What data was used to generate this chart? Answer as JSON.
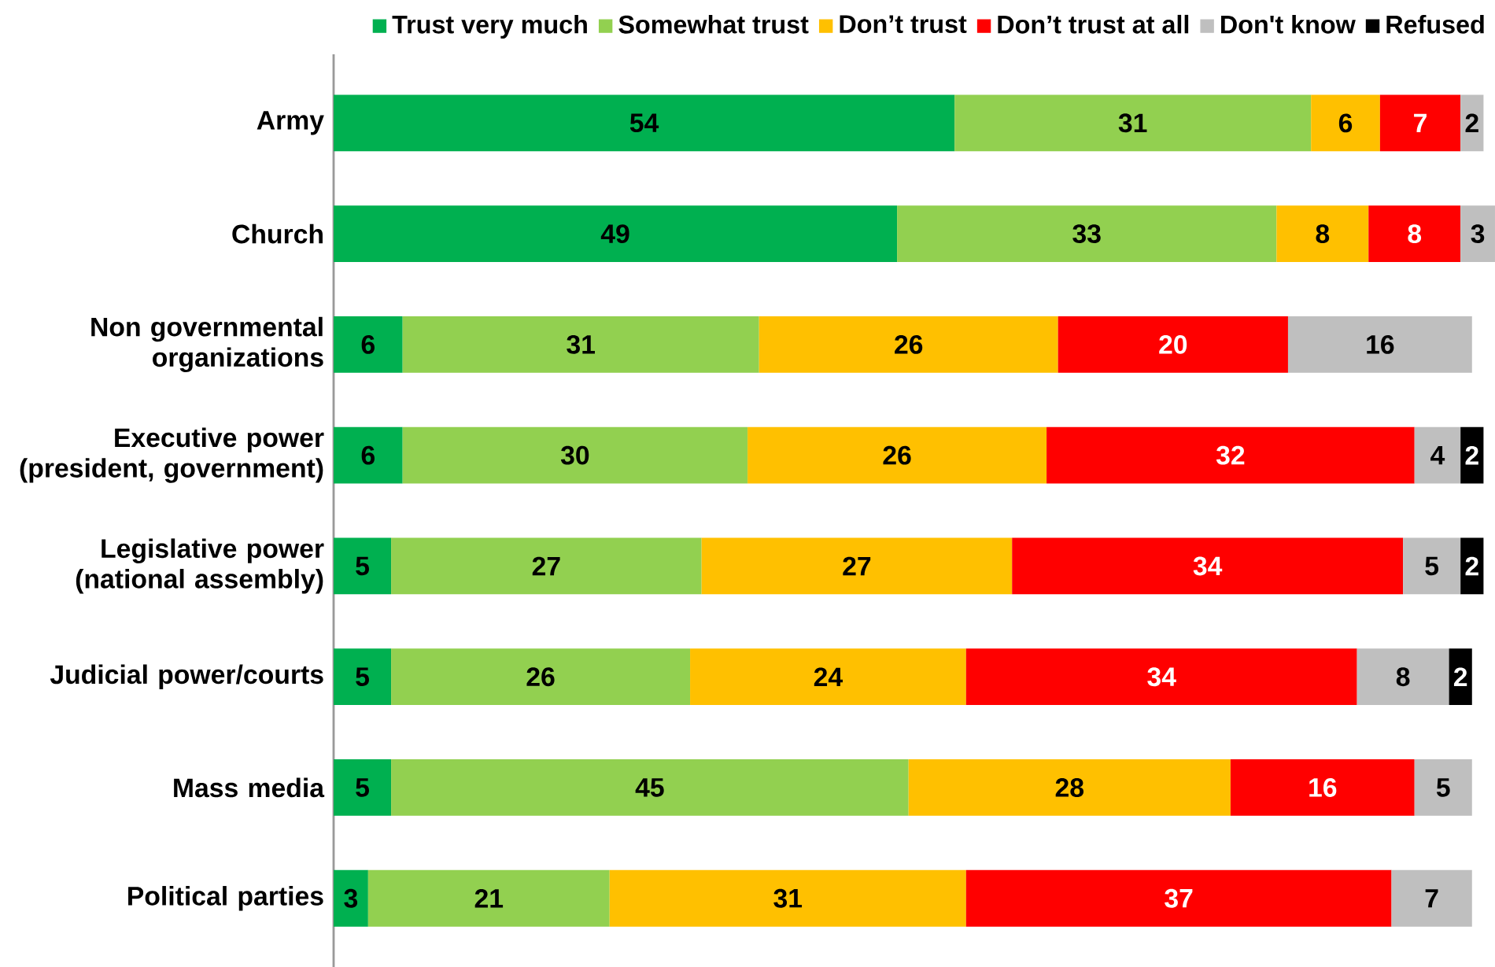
{
  "chart_data": {
    "type": "bar",
    "orientation": "horizontal",
    "stacked": true,
    "data_labels": true,
    "legend": "top",
    "tick_labels": "y",
    "categories": [
      "Army",
      "Church",
      "Non governmental organizations",
      "Executive power (president, government)",
      "Legislative  power (national assembly)",
      "Judicial power/courts",
      "Mass media",
      "Political parties"
    ],
    "series": [
      {
        "name": "Trust very much",
        "color": "#00b050",
        "values": [
          54,
          49,
          6,
          6,
          5,
          5,
          5,
          3
        ]
      },
      {
        "name": "Somewhat trust",
        "color": "#92d050",
        "values": [
          31,
          33,
          31,
          30,
          27,
          26,
          45,
          21
        ]
      },
      {
        "name": "Don’t trust",
        "color": "#ffc000",
        "values": [
          6,
          8,
          26,
          26,
          27,
          24,
          28,
          31
        ]
      },
      {
        "name": "Don’t trust at all",
        "color": "#ff0000",
        "values": [
          7,
          8,
          20,
          32,
          34,
          34,
          16,
          37
        ]
      },
      {
        "name": "Don't know",
        "color": "#bfbfbf",
        "values": [
          2,
          3,
          16,
          4,
          5,
          8,
          5,
          7
        ]
      },
      {
        "name": "Refused",
        "color": "#000000",
        "values": [
          null,
          null,
          null,
          2,
          2,
          2,
          null,
          null
        ]
      }
    ]
  }
}
